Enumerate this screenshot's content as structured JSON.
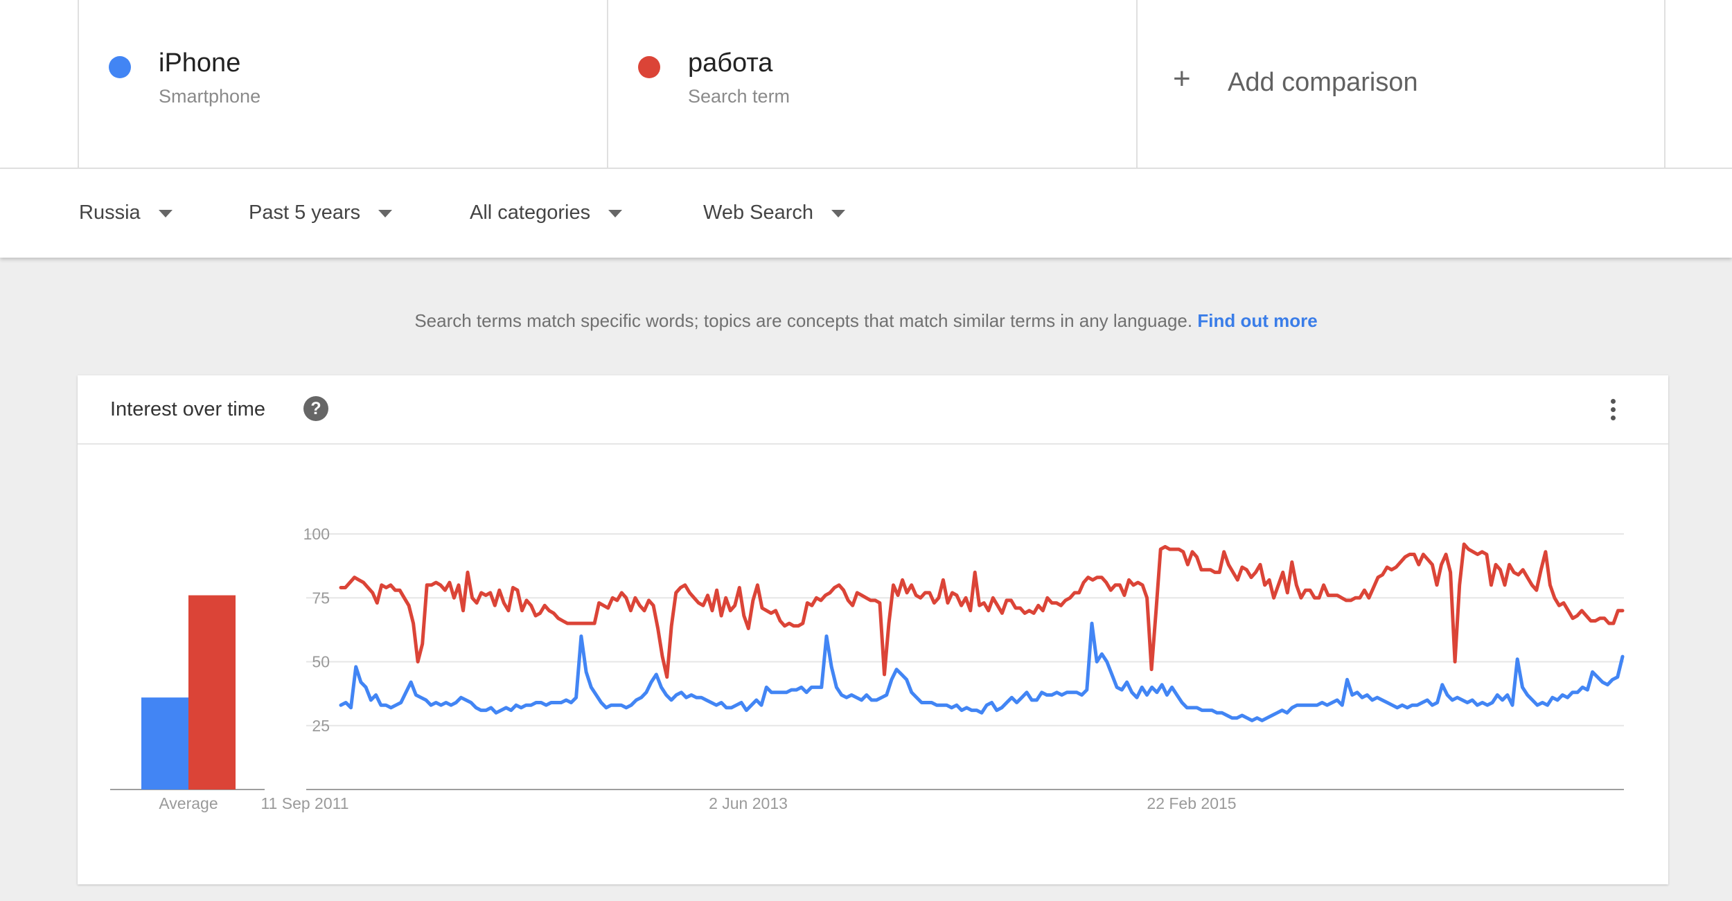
{
  "terms": [
    {
      "name": "iPhone",
      "type": "Smartphone",
      "color": "#4285f4"
    },
    {
      "name": "работа",
      "type": "Search term",
      "color": "#db4437"
    }
  ],
  "add_comparison": {
    "label": "Add comparison",
    "icon": "plus-icon"
  },
  "filters": {
    "region": "Russia",
    "time": "Past 5 years",
    "category": "All categories",
    "search_type": "Web Search"
  },
  "notice": {
    "text": "Search terms match specific words; topics are concepts that match similar terms in any language.",
    "link": "Find out more"
  },
  "card": {
    "title": "Interest over time",
    "help_icon": "help-icon",
    "menu_icon": "more-vert-icon"
  },
  "chart_data": {
    "type": "line",
    "y_ticks": [
      100,
      75,
      50,
      25
    ],
    "ylim": [
      0,
      100
    ],
    "x_tick_labels": [
      "11 Sep 2011",
      "2 Jun 2013",
      "22 Feb 2015"
    ],
    "average_label": "Average",
    "averages": [
      {
        "name": "iPhone",
        "value": 36,
        "color": "#4285f4"
      },
      {
        "name": "работа",
        "value": 76,
        "color": "#db4437"
      }
    ],
    "series": [
      {
        "name": "iPhone",
        "color": "#4285f4",
        "values": [
          33,
          34,
          32,
          48,
          42,
          40,
          35,
          37,
          33,
          33,
          32,
          33,
          34,
          38,
          42,
          37,
          36,
          35,
          33,
          34,
          33,
          34,
          33,
          34,
          36,
          35,
          34,
          32,
          31,
          31,
          32,
          30,
          31,
          32,
          31,
          33,
          32,
          33,
          33,
          34,
          34,
          33,
          34,
          34,
          34,
          35,
          34,
          36,
          60,
          46,
          40,
          37,
          34,
          32,
          33,
          33,
          33,
          32,
          33,
          35,
          36,
          38,
          42,
          45,
          40,
          37,
          35,
          37,
          38,
          36,
          37,
          36,
          36,
          35,
          34,
          33,
          34,
          32,
          32,
          33,
          34,
          31,
          33,
          35,
          33,
          40,
          38,
          38,
          38,
          38,
          39,
          39,
          40,
          38,
          40,
          40,
          40,
          60,
          48,
          40,
          37,
          36,
          37,
          36,
          35,
          37,
          35,
          35,
          36,
          37,
          43,
          47,
          45,
          43,
          38,
          36,
          34,
          34,
          34,
          33,
          33,
          33,
          32,
          33,
          31,
          32,
          31,
          31,
          30,
          33,
          34,
          31,
          32,
          34,
          36,
          34,
          36,
          38,
          35,
          35,
          38,
          37,
          37,
          38,
          37,
          38,
          38,
          38,
          37,
          39,
          65,
          50,
          53,
          50,
          45,
          40,
          39,
          42,
          38,
          36,
          40,
          37,
          40,
          38,
          41,
          37,
          40,
          37,
          34,
          32,
          32,
          32,
          31,
          31,
          31,
          30,
          30,
          29,
          28,
          28,
          29,
          28,
          27,
          28,
          27,
          28,
          29,
          30,
          31,
          30,
          32,
          33,
          33,
          33,
          33,
          33,
          34,
          33,
          34,
          35,
          33,
          43,
          37,
          38,
          36,
          37,
          35,
          36,
          35,
          34,
          33,
          32,
          33,
          32,
          33,
          33,
          34,
          35,
          33,
          34,
          41,
          37,
          35,
          36,
          35,
          34,
          35,
          33,
          34,
          33,
          34,
          37,
          35,
          37,
          33,
          51,
          40,
          37,
          35,
          33,
          34,
          33,
          36,
          35,
          37,
          36,
          38,
          38,
          40,
          39,
          46,
          44,
          42,
          41,
          43,
          44,
          52
        ]
      },
      {
        "name": "работа",
        "color": "#db4437",
        "values": [
          79,
          79,
          81,
          83,
          82,
          81,
          79,
          77,
          73,
          80,
          79,
          80,
          78,
          78,
          75,
          72,
          65,
          50,
          57,
          80,
          80,
          81,
          80,
          78,
          81,
          75,
          80,
          70,
          85,
          75,
          73,
          77,
          76,
          77,
          72,
          78,
          73,
          70,
          79,
          78,
          70,
          74,
          72,
          68,
          69,
          72,
          70,
          69,
          67,
          66,
          65,
          65,
          65,
          65,
          65,
          65,
          65,
          73,
          72,
          71,
          75,
          74,
          77,
          75,
          70,
          75,
          72,
          70,
          74,
          72,
          63,
          52,
          44,
          64,
          77,
          79,
          80,
          77,
          75,
          73,
          72,
          76,
          70,
          78,
          68,
          75,
          70,
          72,
          79,
          68,
          63,
          74,
          80,
          71,
          70,
          69,
          70,
          66,
          64,
          65,
          64,
          64,
          65,
          73,
          72,
          75,
          74,
          76,
          77,
          79,
          80,
          78,
          74,
          72,
          77,
          76,
          75,
          74,
          74,
          73,
          45,
          65,
          80,
          76,
          82,
          77,
          80,
          76,
          75,
          77,
          77,
          73,
          75,
          82,
          73,
          77,
          76,
          72,
          75,
          70,
          85,
          72,
          73,
          70,
          75,
          72,
          69,
          74,
          74,
          71,
          71,
          69,
          70,
          69,
          72,
          70,
          75,
          73,
          73,
          72,
          74,
          75,
          77,
          77,
          81,
          83,
          82,
          83,
          83,
          81,
          78,
          80,
          80,
          76,
          82,
          80,
          81,
          80,
          75,
          47,
          70,
          94,
          95,
          94,
          94,
          94,
          93,
          88,
          93,
          91,
          86,
          86,
          86,
          85,
          85,
          93,
          88,
          85,
          82,
          87,
          86,
          83,
          85,
          88,
          80,
          82,
          75,
          80,
          85,
          77,
          89,
          80,
          75,
          78,
          78,
          75,
          75,
          80,
          76,
          76,
          76,
          75,
          74,
          74,
          75,
          75,
          78,
          75,
          79,
          83,
          84,
          87,
          86,
          87,
          89,
          91,
          92,
          92,
          88,
          92,
          90,
          88,
          80,
          88,
          92,
          85,
          50,
          80,
          96,
          94,
          93,
          92,
          93,
          92,
          80,
          88,
          86,
          80,
          88,
          85,
          84,
          86,
          83,
          80,
          78,
          86,
          93,
          80,
          75,
          72,
          73,
          70,
          67,
          68,
          70,
          68,
          66,
          66,
          67,
          67,
          65,
          65,
          70,
          70
        ]
      }
    ]
  }
}
